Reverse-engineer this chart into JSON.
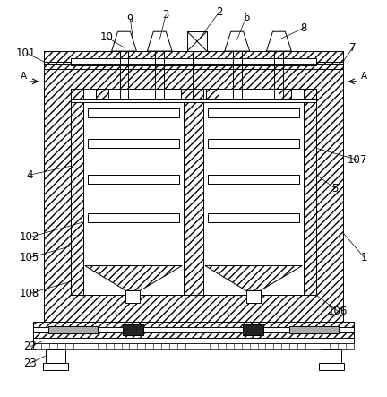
{
  "bg_color": "#ffffff",
  "figsize": [
    4.32,
    4.43
  ],
  "dpi": 100,
  "lw": 0.7
}
